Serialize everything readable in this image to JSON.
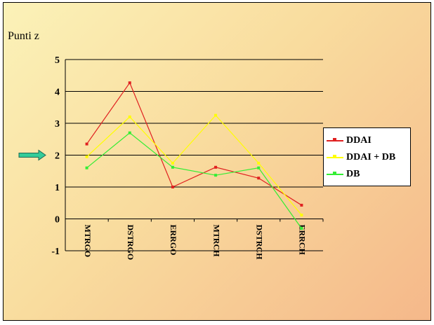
{
  "chart_data": {
    "type": "line",
    "title": "",
    "ylabel": "Punti z",
    "xlabel": "",
    "categories": [
      "MTRGO",
      "DSTRGO",
      "ERRGO",
      "MTRCH",
      "DSTRCH",
      "ERRCH"
    ],
    "yticks": [
      "-1",
      "0",
      "1",
      "2",
      "3",
      "4",
      "5"
    ],
    "ylim": [
      -1,
      5
    ],
    "grid": "horizontal",
    "legend_position": "right",
    "reference_value": 2,
    "reference_color": "#33cc99",
    "series": [
      {
        "name": "DDAI",
        "color": "#e02020",
        "values": [
          2.35,
          4.27,
          1.0,
          1.62,
          1.28,
          0.43
        ]
      },
      {
        "name": "DDAI + DB",
        "color": "#ffff00",
        "values": [
          1.95,
          3.2,
          1.75,
          3.25,
          1.75,
          0.12
        ]
      },
      {
        "name": "DB",
        "color": "#33ee33",
        "values": [
          1.6,
          2.7,
          1.62,
          1.37,
          1.6,
          -0.3
        ]
      }
    ]
  }
}
